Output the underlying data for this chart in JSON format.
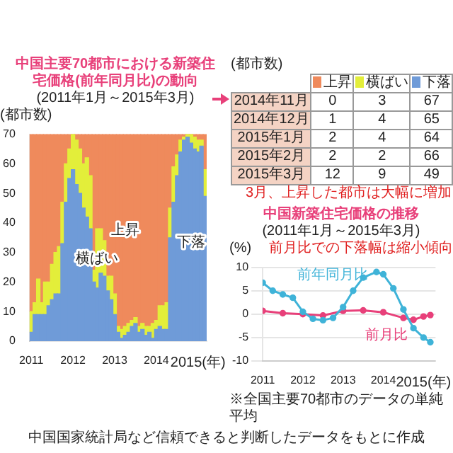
{
  "chart_data": [
    {
      "type": "bar",
      "title": "中国主要70都市における新築住宅価格(前年同月比)の動向",
      "subtitle": "(2011年1月～2015年3月)",
      "ylabel": "(都市数)",
      "stacked": true,
      "grid": false,
      "categories": [
        "2011",
        null,
        null,
        null,
        null,
        null,
        null,
        null,
        null,
        null,
        null,
        null,
        "2012",
        null,
        null,
        null,
        null,
        null,
        null,
        null,
        null,
        null,
        null,
        null,
        "2013",
        null,
        null,
        null,
        null,
        null,
        null,
        null,
        null,
        null,
        null,
        null,
        "2014",
        null,
        null,
        null,
        null,
        null,
        null,
        null,
        null,
        null,
        null,
        null,
        "2015(年)",
        null,
        null
      ],
      "ylim": [
        0,
        70
      ],
      "yticks": [
        0,
        10,
        20,
        30,
        40,
        50,
        60,
        70
      ],
      "series": [
        {
          "name": "下落",
          "color": "#6f9bd8",
          "values": [
            3,
            9,
            9,
            9,
            9,
            12,
            14,
            16,
            16,
            33,
            47,
            55,
            58,
            53,
            50,
            45,
            42,
            38,
            20,
            18,
            23,
            22,
            17,
            14,
            9,
            3,
            1,
            2,
            3,
            5,
            6,
            3,
            4,
            2,
            3,
            1,
            4,
            5,
            4,
            4,
            35,
            47,
            56,
            64,
            68,
            69,
            67,
            65,
            64,
            66,
            49
          ]
        },
        {
          "name": "横ばい",
          "color": "#e3ee3a",
          "values": [
            7,
            4,
            12,
            4,
            11,
            8,
            12,
            14,
            16,
            14,
            13,
            10,
            12,
            15,
            15,
            15,
            20,
            18,
            4,
            20,
            15,
            12,
            5,
            8,
            7,
            2,
            3,
            3,
            3,
            2,
            2,
            2,
            2,
            3,
            2,
            5,
            3,
            7,
            8,
            9,
            10,
            12,
            7,
            4,
            1,
            1,
            3,
            4,
            4,
            2,
            9
          ]
        },
        {
          "name": "上昇",
          "color": "#ef8a5c",
          "values": [
            60,
            57,
            49,
            57,
            50,
            50,
            44,
            40,
            38,
            23,
            10,
            5,
            0,
            2,
            5,
            10,
            8,
            14,
            46,
            32,
            32,
            36,
            48,
            48,
            54,
            65,
            66,
            65,
            64,
            63,
            62,
            65,
            64,
            65,
            65,
            64,
            63,
            58,
            58,
            57,
            25,
            11,
            7,
            2,
            1,
            0,
            0,
            1,
            2,
            2,
            12
          ]
        }
      ],
      "annotations": [
        "中国国家統計局など信頼できると判断したデータをもとに作成"
      ]
    },
    {
      "type": "other",
      "ylabel": "(都市数)",
      "data_labels": true,
      "categories": [
        "2014年11月",
        "2014年12月",
        "2015年1月",
        "2015年2月",
        "2015年3月"
      ],
      "series": [
        {
          "name": "上昇",
          "color": "#ef8a5c",
          "values": [
            0,
            1,
            2,
            2,
            12
          ]
        },
        {
          "name": "横ばい",
          "color": "#e3ee3a",
          "values": [
            3,
            4,
            4,
            2,
            9
          ]
        },
        {
          "name": "下落",
          "color": "#6f9bd8",
          "values": [
            67,
            65,
            64,
            66,
            49
          ]
        }
      ],
      "annotations": [
        "3月、上昇した都市は大幅に増加"
      ]
    },
    {
      "type": "line",
      "title": "中国新築住宅価格の推移",
      "subtitle": "(2011年1月～2015年3月)",
      "ylabel": "(%)",
      "grid": "y",
      "marker": "circle",
      "line_style": "solid",
      "xlim": [
        2011,
        2015.3
      ],
      "xticks": [
        2011,
        2012,
        2013,
        2014,
        {
          "value": 2015,
          "label": "2015(年)"
        }
      ],
      "ylim": [
        -10,
        10
      ],
      "yticks": [
        -10,
        -5,
        0,
        5,
        10
      ],
      "series": [
        {
          "name": "前年同月比",
          "color": "#3fb3d8",
          "x": [
            2011,
            2011.25,
            2011.5,
            2011.75,
            2012,
            2012.25,
            2012.5,
            2012.75,
            2013,
            2013.25,
            2013.5,
            2013.83,
            2014,
            2014.25,
            2014.5,
            2014.75,
            2015,
            2015.17
          ],
          "values": [
            6.7,
            5,
            4.2,
            3.5,
            0.5,
            -1,
            -1.3,
            -0.8,
            1.5,
            5,
            7.8,
            9,
            8.5,
            5.5,
            1,
            -3,
            -5,
            -6
          ]
        },
        {
          "name": "前月比",
          "color": "#e8407a",
          "x": [
            2011,
            2011.5,
            2012,
            2012.5,
            2013,
            2013.5,
            2014,
            2014.5,
            2014.75,
            2015,
            2015.17
          ],
          "values": [
            0.7,
            0.2,
            0,
            -0.3,
            0.7,
            0.8,
            0.4,
            -0.8,
            -1.2,
            -0.5,
            -0.2
          ]
        }
      ],
      "annotations": [
        "前月比での下落幅は縮小傾向",
        "※全国主要70都市のデータの単純平均"
      ]
    }
  ]
}
